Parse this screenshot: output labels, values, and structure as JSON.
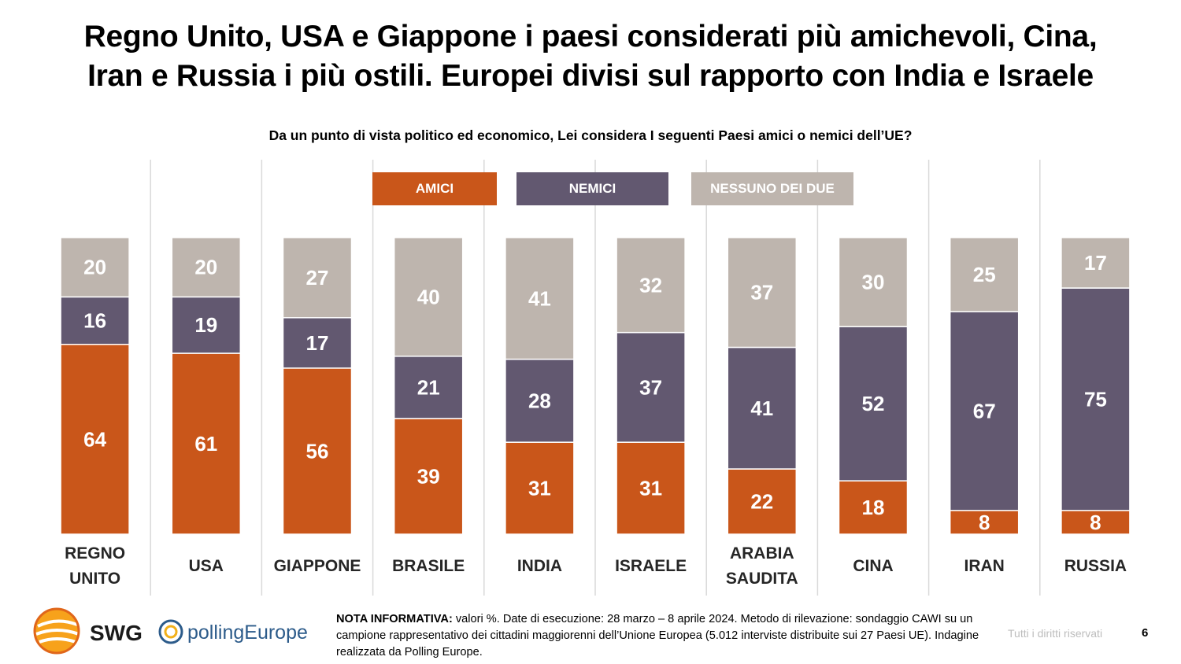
{
  "title": {
    "line1": "Regno Unito, USA e Giappone i paesi considerati più amichevoli, Cina,",
    "line2": "Iran e Russia i più ostili. Europei divisi sul rapporto con India e Israele"
  },
  "subtitle": "Da un punto di vista politico ed economico, Lei considera I seguenti Paesi amici o nemici dell’UE?",
  "colors": {
    "amici": "#C9561A",
    "nemici": "#625870",
    "nessuno": "#BEB5AE",
    "gridline": "#d9d9d9"
  },
  "chart_data": {
    "type": "bar",
    "stacked": true,
    "unit": "%",
    "categories": [
      [
        "REGNO",
        "UNITO"
      ],
      [
        "USA"
      ],
      [
        "GIAPPONE"
      ],
      [
        "BRASILE"
      ],
      [
        "INDIA"
      ],
      [
        "ISRAELE"
      ],
      [
        "ARABIA",
        "SAUDITA"
      ],
      [
        "CINA"
      ],
      [
        "IRAN"
      ],
      [
        "RUSSIA"
      ]
    ],
    "series": [
      {
        "name": "AMICI",
        "values": [
          64,
          61,
          56,
          39,
          31,
          31,
          22,
          18,
          8,
          8
        ]
      },
      {
        "name": "NEMICI",
        "values": [
          16,
          19,
          17,
          21,
          28,
          37,
          41,
          52,
          67,
          75
        ]
      },
      {
        "name": "NESSUNO DEI DUE",
        "values": [
          20,
          20,
          27,
          40,
          41,
          32,
          37,
          30,
          25,
          17
        ]
      }
    ],
    "legend_position": "top-center",
    "ylim": [
      0,
      100
    ]
  },
  "footer": {
    "swg_logo_text": "SWG",
    "polling_logo_text": "pollingEurope",
    "note_label": "NOTA INFORMATIVA:",
    "note_text": " valori %. Date di esecuzione: 28 marzo – 8 aprile 2024. Metodo di rilevazione: sondaggio CAWI su un campione rappresentativo dei cittadini maggiorenni dell’Unione Europea (5.012 interviste distribuite sui 27 Paesi UE). Indagine realizzata da Polling Europe.",
    "rights": "Tutti i diritti riservati",
    "page_number": "6"
  }
}
